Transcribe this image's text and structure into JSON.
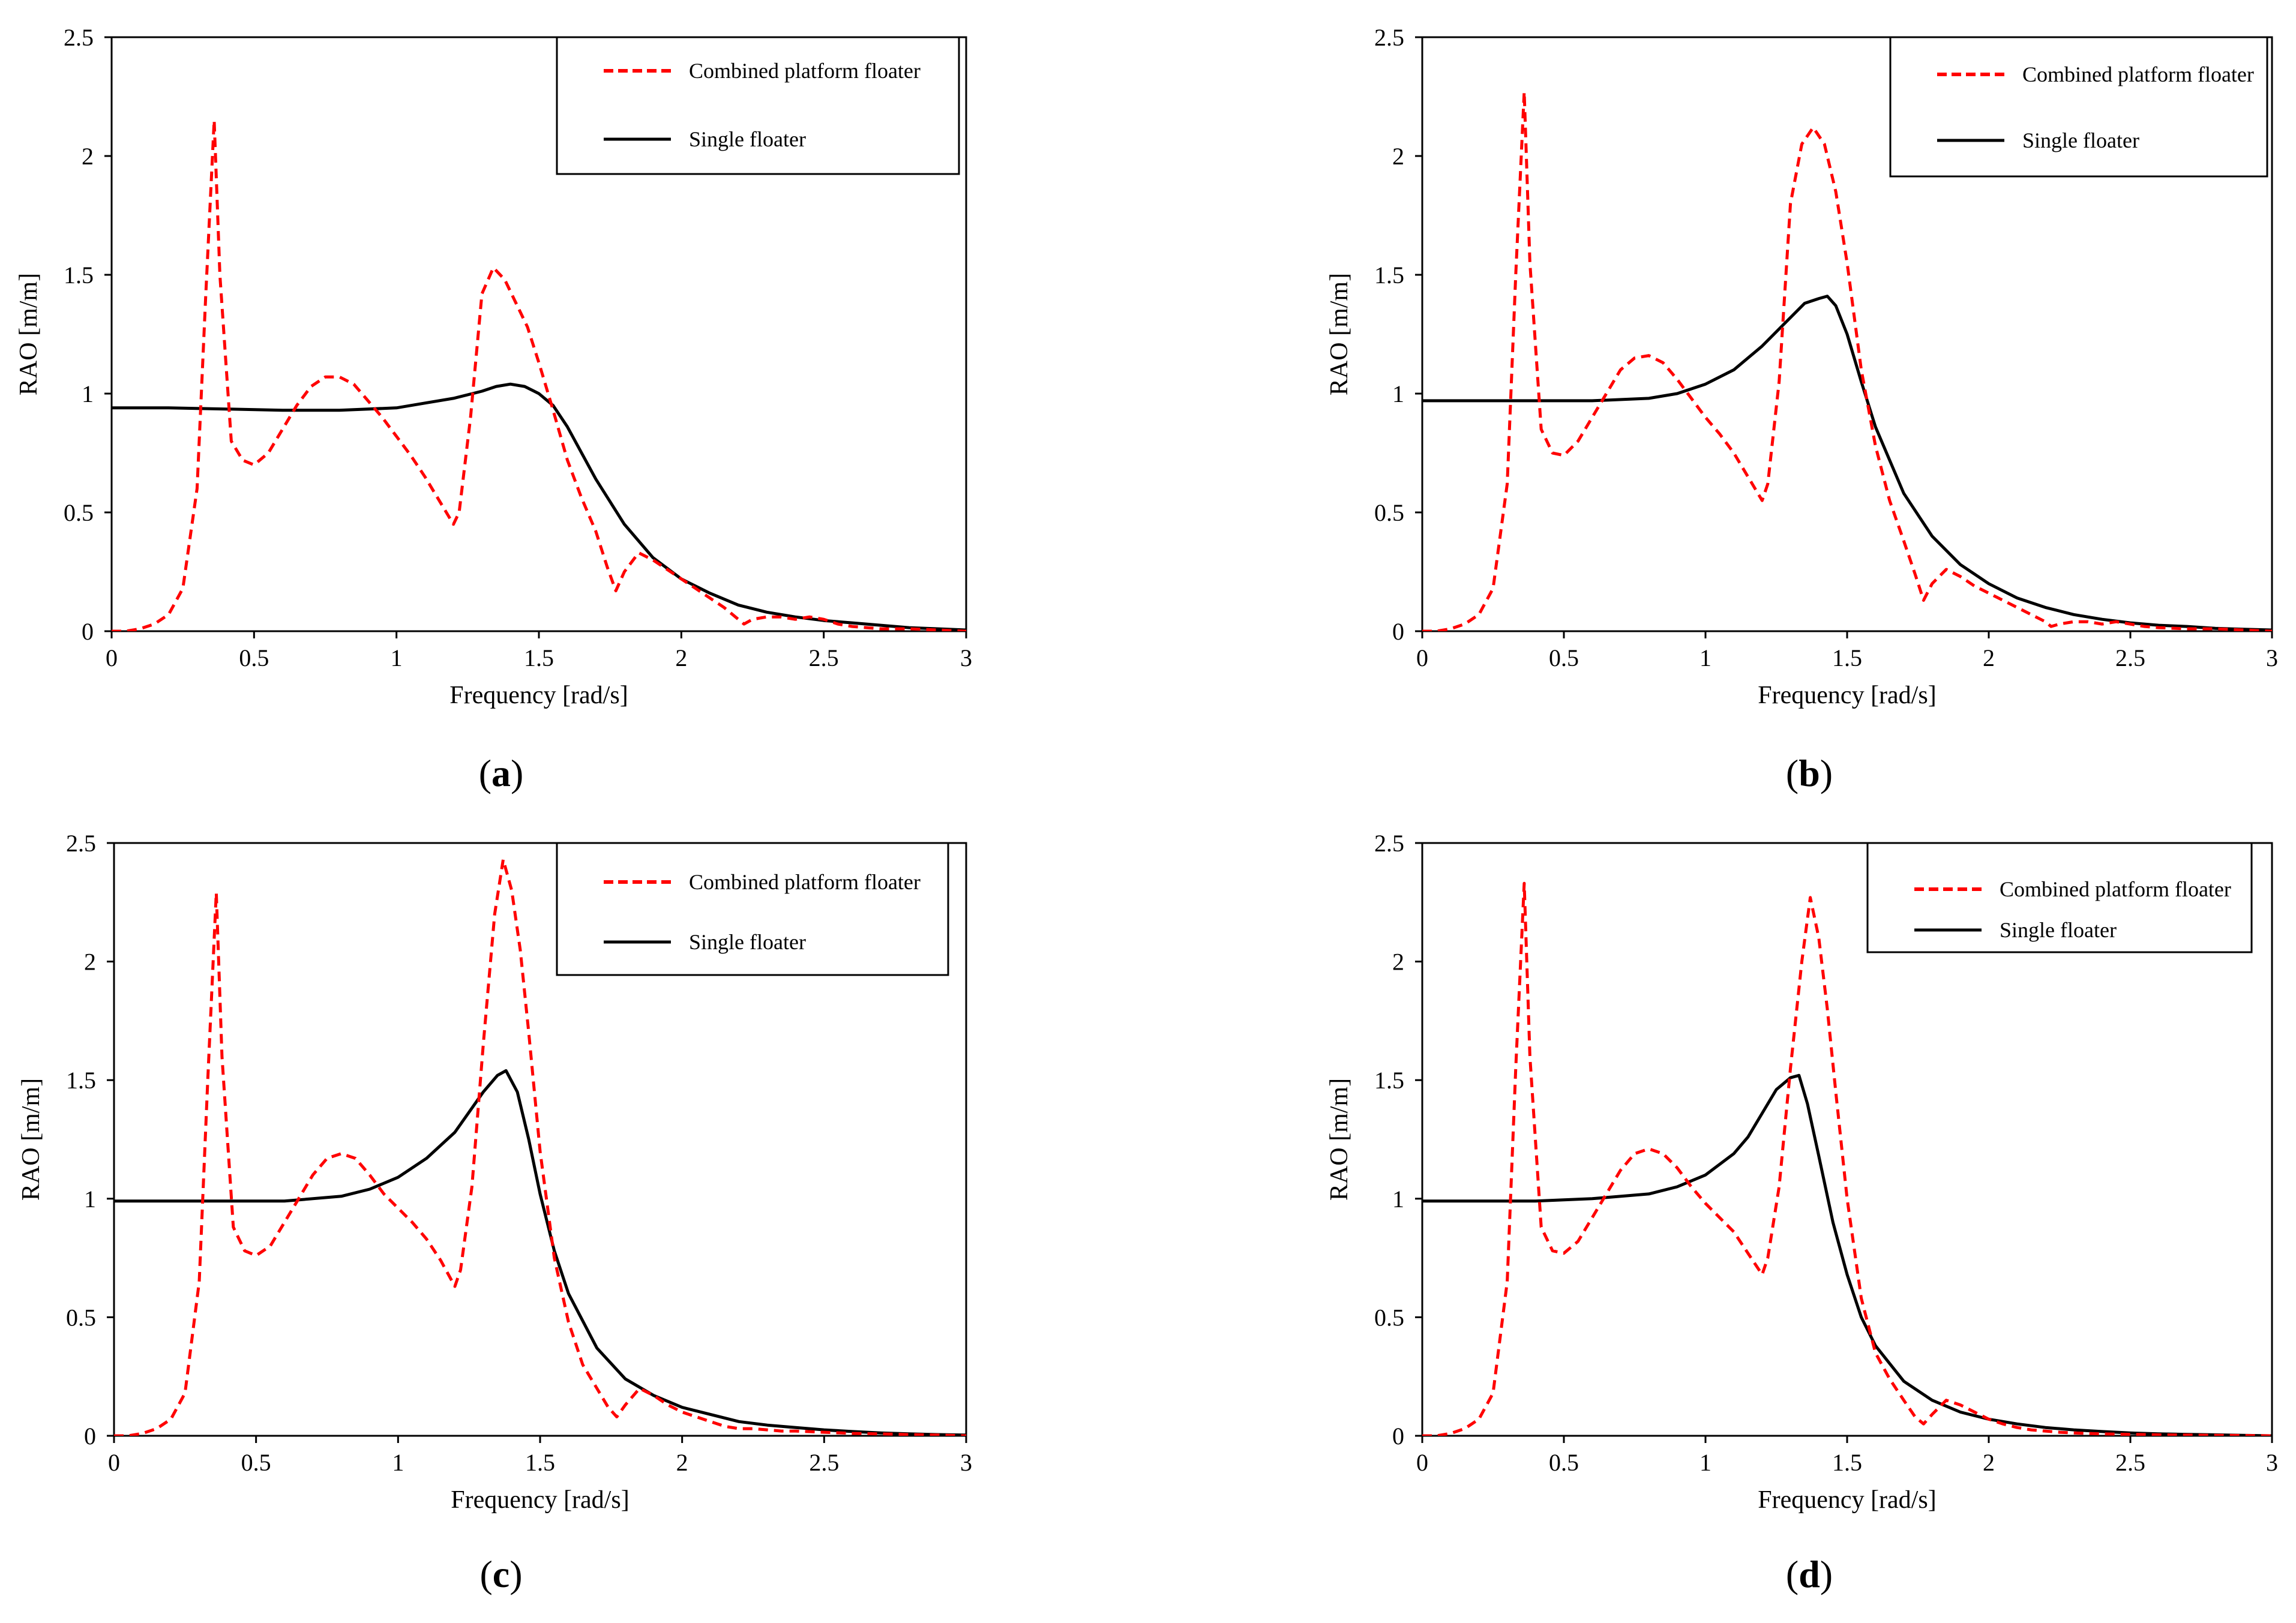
{
  "chart_data": [
    {
      "panel_label": "a",
      "type": "line",
      "xlabel": "Frequency [rad/s]",
      "ylabel": "RAO [m/m]",
      "xlim": [
        0,
        3
      ],
      "ylim": [
        0,
        2.5
      ],
      "xticks": [
        "0",
        "0.5",
        "1",
        "1.5",
        "2",
        "2.5",
        "3"
      ],
      "yticks": [
        "0",
        "0.5",
        "1",
        "1.5",
        "2",
        "2.5"
      ],
      "grid": false,
      "legend_position": "top-right",
      "series": [
        {
          "name": "Combined platform floater",
          "color": "#ff0000",
          "style": "dashed",
          "x": [
            0,
            0.05,
            0.1,
            0.15,
            0.2,
            0.25,
            0.3,
            0.33,
            0.36,
            0.38,
            0.42,
            0.46,
            0.5,
            0.55,
            0.6,
            0.65,
            0.7,
            0.75,
            0.8,
            0.85,
            0.9,
            0.95,
            1.0,
            1.05,
            1.1,
            1.15,
            1.2,
            1.22,
            1.26,
            1.3,
            1.34,
            1.38,
            1.42,
            1.46,
            1.5,
            1.55,
            1.6,
            1.65,
            1.7,
            1.74,
            1.77,
            1.8,
            1.85,
            1.9,
            1.95,
            2.0,
            2.05,
            2.1,
            2.15,
            2.2,
            2.22,
            2.25,
            2.3,
            2.35,
            2.4,
            2.45,
            2.5,
            2.55,
            2.6,
            2.7,
            2.8,
            2.9,
            3.0
          ],
          "values": [
            0,
            0.0,
            0.01,
            0.03,
            0.07,
            0.18,
            0.6,
            1.4,
            2.15,
            1.5,
            0.8,
            0.72,
            0.7,
            0.75,
            0.85,
            0.95,
            1.03,
            1.07,
            1.07,
            1.04,
            0.97,
            0.9,
            0.82,
            0.74,
            0.65,
            0.55,
            0.45,
            0.5,
            0.9,
            1.42,
            1.53,
            1.48,
            1.38,
            1.28,
            1.13,
            0.93,
            0.72,
            0.56,
            0.42,
            0.27,
            0.17,
            0.25,
            0.33,
            0.3,
            0.26,
            0.22,
            0.18,
            0.14,
            0.1,
            0.05,
            0.03,
            0.05,
            0.06,
            0.06,
            0.05,
            0.06,
            0.05,
            0.03,
            0.02,
            0.01,
            0.01,
            0.005,
            0
          ]
        },
        {
          "name": "Single floater",
          "color": "#000000",
          "style": "solid",
          "x": [
            0,
            0.2,
            0.4,
            0.6,
            0.8,
            1.0,
            1.1,
            1.2,
            1.3,
            1.35,
            1.4,
            1.45,
            1.5,
            1.55,
            1.6,
            1.7,
            1.8,
            1.9,
            2.0,
            2.1,
            2.2,
            2.3,
            2.4,
            2.5,
            2.6,
            2.7,
            2.8,
            2.9,
            3.0
          ],
          "values": [
            0.94,
            0.94,
            0.935,
            0.93,
            0.93,
            0.94,
            0.96,
            0.98,
            1.01,
            1.03,
            1.04,
            1.03,
            1.0,
            0.95,
            0.86,
            0.64,
            0.45,
            0.31,
            0.22,
            0.16,
            0.11,
            0.08,
            0.06,
            0.045,
            0.035,
            0.025,
            0.015,
            0.01,
            0.005
          ]
        }
      ]
    },
    {
      "panel_label": "b",
      "type": "line",
      "xlabel": "Frequency [rad/s]",
      "ylabel": "RAO [m/m]",
      "xlim": [
        0,
        3
      ],
      "ylim": [
        0,
        2.5
      ],
      "xticks": [
        "0",
        "0.5",
        "1",
        "1.5",
        "2",
        "2.5",
        "3"
      ],
      "yticks": [
        "0",
        "0.5",
        "1",
        "1.5",
        "2",
        "2.5"
      ],
      "grid": false,
      "legend_position": "top-right",
      "series": [
        {
          "name": "Combined platform floater",
          "color": "#ff0000",
          "style": "dashed",
          "x": [
            0,
            0.05,
            0.1,
            0.15,
            0.2,
            0.25,
            0.3,
            0.33,
            0.36,
            0.38,
            0.42,
            0.46,
            0.5,
            0.55,
            0.6,
            0.65,
            0.7,
            0.75,
            0.8,
            0.85,
            0.9,
            0.95,
            1.0,
            1.05,
            1.1,
            1.15,
            1.2,
            1.22,
            1.26,
            1.3,
            1.34,
            1.38,
            1.42,
            1.46,
            1.5,
            1.55,
            1.6,
            1.65,
            1.7,
            1.74,
            1.77,
            1.8,
            1.85,
            1.9,
            1.95,
            2.0,
            2.05,
            2.1,
            2.15,
            2.2,
            2.22,
            2.25,
            2.3,
            2.35,
            2.4,
            2.45,
            2.5,
            2.55,
            2.6,
            2.7,
            2.8,
            2.9,
            3.0
          ],
          "values": [
            0,
            0.0,
            0.01,
            0.03,
            0.07,
            0.18,
            0.62,
            1.5,
            2.27,
            1.55,
            0.85,
            0.75,
            0.74,
            0.8,
            0.9,
            1.0,
            1.1,
            1.15,
            1.16,
            1.13,
            1.06,
            0.98,
            0.9,
            0.83,
            0.75,
            0.65,
            0.55,
            0.62,
            1.05,
            1.8,
            2.05,
            2.12,
            2.05,
            1.85,
            1.55,
            1.1,
            0.78,
            0.55,
            0.38,
            0.24,
            0.13,
            0.2,
            0.26,
            0.23,
            0.19,
            0.16,
            0.13,
            0.1,
            0.07,
            0.04,
            0.02,
            0.03,
            0.04,
            0.04,
            0.03,
            0.04,
            0.03,
            0.02,
            0.015,
            0.01,
            0.01,
            0.005,
            0
          ]
        },
        {
          "name": "Single floater",
          "color": "#000000",
          "style": "solid",
          "x": [
            0,
            0.2,
            0.4,
            0.6,
            0.8,
            0.9,
            1.0,
            1.1,
            1.2,
            1.3,
            1.35,
            1.4,
            1.43,
            1.46,
            1.5,
            1.55,
            1.6,
            1.7,
            1.8,
            1.9,
            2.0,
            2.1,
            2.2,
            2.3,
            2.4,
            2.5,
            2.6,
            2.7,
            2.8,
            2.9,
            3.0
          ],
          "values": [
            0.97,
            0.97,
            0.97,
            0.97,
            0.98,
            1.0,
            1.04,
            1.1,
            1.2,
            1.32,
            1.38,
            1.4,
            1.41,
            1.37,
            1.25,
            1.05,
            0.86,
            0.58,
            0.4,
            0.28,
            0.2,
            0.14,
            0.1,
            0.07,
            0.05,
            0.035,
            0.025,
            0.02,
            0.012,
            0.008,
            0.005
          ]
        }
      ]
    },
    {
      "panel_label": "c",
      "type": "line",
      "xlabel": "Frequency [rad/s]",
      "ylabel": "RAO [m/m]",
      "xlim": [
        0,
        3
      ],
      "ylim": [
        0,
        2.5
      ],
      "xticks": [
        "0",
        "0.5",
        "1",
        "1.5",
        "2",
        "2.5",
        "3"
      ],
      "yticks": [
        "0",
        "0.5",
        "1",
        "1.5",
        "2",
        "2.5"
      ],
      "grid": false,
      "legend_position": "top-right",
      "series": [
        {
          "name": "Combined platform floater",
          "color": "#ff0000",
          "style": "dashed",
          "x": [
            0,
            0.05,
            0.1,
            0.15,
            0.2,
            0.25,
            0.3,
            0.33,
            0.36,
            0.38,
            0.42,
            0.46,
            0.5,
            0.55,
            0.6,
            0.65,
            0.7,
            0.75,
            0.8,
            0.85,
            0.9,
            0.95,
            1.0,
            1.05,
            1.1,
            1.15,
            1.2,
            1.22,
            1.26,
            1.3,
            1.34,
            1.37,
            1.4,
            1.43,
            1.46,
            1.5,
            1.55,
            1.6,
            1.65,
            1.7,
            1.74,
            1.77,
            1.8,
            1.85,
            1.9,
            1.95,
            2.0,
            2.05,
            2.1,
            2.15,
            2.2,
            2.25,
            2.3,
            2.35,
            2.4,
            2.5,
            2.6,
            2.7,
            2.8,
            2.9,
            3.0
          ],
          "values": [
            0,
            0.0,
            0.01,
            0.03,
            0.07,
            0.18,
            0.65,
            1.5,
            2.29,
            1.6,
            0.88,
            0.78,
            0.76,
            0.8,
            0.9,
            1.0,
            1.1,
            1.17,
            1.19,
            1.17,
            1.1,
            1.02,
            0.96,
            0.9,
            0.83,
            0.74,
            0.63,
            0.7,
            1.05,
            1.65,
            2.2,
            2.43,
            2.3,
            2.05,
            1.7,
            1.2,
            0.75,
            0.48,
            0.3,
            0.2,
            0.12,
            0.08,
            0.13,
            0.2,
            0.17,
            0.13,
            0.1,
            0.08,
            0.06,
            0.04,
            0.03,
            0.03,
            0.025,
            0.02,
            0.02,
            0.015,
            0.01,
            0.008,
            0.005,
            0.003,
            0
          ]
        },
        {
          "name": "Single floater",
          "color": "#000000",
          "style": "solid",
          "x": [
            0,
            0.2,
            0.4,
            0.6,
            0.8,
            0.9,
            1.0,
            1.1,
            1.2,
            1.3,
            1.35,
            1.38,
            1.42,
            1.46,
            1.5,
            1.55,
            1.6,
            1.7,
            1.8,
            1.9,
            2.0,
            2.1,
            2.2,
            2.3,
            2.4,
            2.5,
            2.6,
            2.7,
            2.8,
            2.9,
            3.0
          ],
          "values": [
            0.99,
            0.99,
            0.99,
            0.99,
            1.01,
            1.04,
            1.09,
            1.17,
            1.28,
            1.45,
            1.52,
            1.54,
            1.45,
            1.25,
            1.02,
            0.78,
            0.6,
            0.37,
            0.24,
            0.17,
            0.12,
            0.09,
            0.06,
            0.045,
            0.035,
            0.025,
            0.018,
            0.012,
            0.008,
            0.005,
            0.003
          ]
        }
      ]
    },
    {
      "panel_label": "d",
      "type": "line",
      "xlabel": "Frequency [rad/s]",
      "ylabel": "RAO [m/m]",
      "xlim": [
        0,
        3
      ],
      "ylim": [
        0,
        2.5
      ],
      "xticks": [
        "0",
        "0.5",
        "1",
        "1.5",
        "2",
        "2.5",
        "3"
      ],
      "yticks": [
        "0",
        "0.5",
        "1",
        "1.5",
        "2",
        "2.5"
      ],
      "grid": false,
      "legend_position": "top-right",
      "series": [
        {
          "name": "Combined platform floater",
          "color": "#ff0000",
          "style": "dashed",
          "x": [
            0,
            0.05,
            0.1,
            0.15,
            0.2,
            0.25,
            0.3,
            0.33,
            0.36,
            0.38,
            0.42,
            0.46,
            0.5,
            0.55,
            0.6,
            0.65,
            0.7,
            0.75,
            0.8,
            0.85,
            0.9,
            0.95,
            1.0,
            1.05,
            1.1,
            1.15,
            1.2,
            1.22,
            1.26,
            1.3,
            1.34,
            1.37,
            1.4,
            1.43,
            1.46,
            1.5,
            1.55,
            1.6,
            1.65,
            1.7,
            1.74,
            1.77,
            1.8,
            1.85,
            1.9,
            1.95,
            2.0,
            2.05,
            2.1,
            2.15,
            2.2,
            2.25,
            2.3,
            2.35,
            2.4,
            2.5,
            2.6,
            2.7,
            2.8,
            2.9,
            3.0
          ],
          "values": [
            0,
            0.0,
            0.01,
            0.03,
            0.07,
            0.18,
            0.65,
            1.55,
            2.33,
            1.6,
            0.88,
            0.78,
            0.77,
            0.82,
            0.92,
            1.02,
            1.12,
            1.19,
            1.21,
            1.19,
            1.13,
            1.05,
            0.98,
            0.92,
            0.86,
            0.77,
            0.68,
            0.75,
            1.05,
            1.55,
            2.0,
            2.27,
            2.1,
            1.8,
            1.45,
            1.0,
            0.58,
            0.35,
            0.24,
            0.15,
            0.08,
            0.05,
            0.09,
            0.15,
            0.13,
            0.1,
            0.07,
            0.05,
            0.035,
            0.025,
            0.02,
            0.015,
            0.012,
            0.01,
            0.008,
            0.006,
            0.004,
            0.003,
            0.002,
            0.001,
            0
          ]
        },
        {
          "name": "Single floater",
          "color": "#000000",
          "style": "solid",
          "x": [
            0,
            0.2,
            0.4,
            0.6,
            0.8,
            0.9,
            1.0,
            1.1,
            1.15,
            1.2,
            1.25,
            1.3,
            1.33,
            1.36,
            1.4,
            1.45,
            1.5,
            1.55,
            1.6,
            1.7,
            1.8,
            1.9,
            2.0,
            2.1,
            2.2,
            2.3,
            2.4,
            2.5,
            2.6,
            2.7,
            2.8,
            2.9,
            3.0
          ],
          "values": [
            0.99,
            0.99,
            0.99,
            1.0,
            1.02,
            1.05,
            1.1,
            1.19,
            1.26,
            1.36,
            1.46,
            1.51,
            1.52,
            1.4,
            1.18,
            0.9,
            0.68,
            0.5,
            0.38,
            0.23,
            0.15,
            0.1,
            0.07,
            0.05,
            0.035,
            0.025,
            0.018,
            0.012,
            0.008,
            0.006,
            0.004,
            0.002,
            0
          ]
        }
      ]
    }
  ],
  "captions": [
    {
      "open": "(",
      "letter": "a",
      "close": ")"
    },
    {
      "open": "(",
      "letter": "b",
      "close": ")"
    },
    {
      "open": "(",
      "letter": "c",
      "close": ")"
    },
    {
      "open": "(",
      "letter": "d",
      "close": ")"
    }
  ]
}
